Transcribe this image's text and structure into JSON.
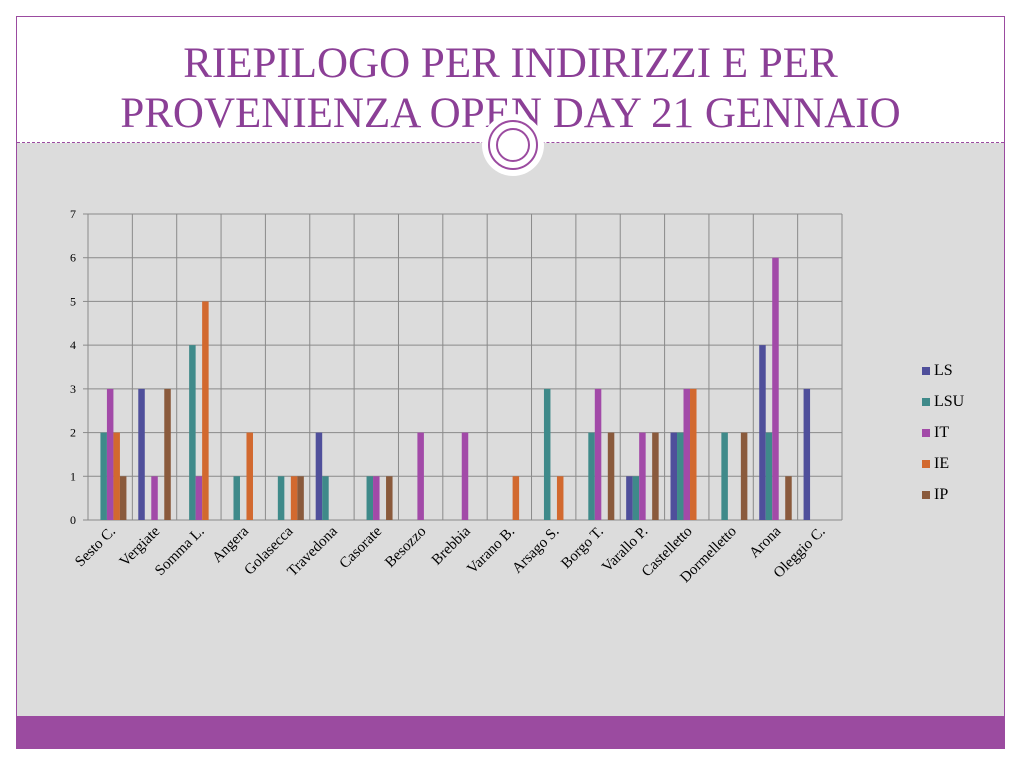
{
  "slide": {
    "title_line1": "RIEPILOGO PER INDIRIZZI E PER",
    "title_line2": "PROVENIENZA OPEN DAY  21 GENNAIO",
    "accent_color": "#9b4ba0"
  },
  "chart_data": {
    "type": "bar",
    "title": "",
    "xlabel": "",
    "ylabel": "",
    "ylim": [
      0,
      7
    ],
    "yticks": [
      0,
      1,
      2,
      3,
      4,
      5,
      6,
      7
    ],
    "grid": true,
    "legend_position": "right",
    "categories": [
      "Sesto C.",
      "Vergiate",
      "Somma L.",
      "Angera",
      "Golasecca",
      "Travedona",
      "Casorate",
      "Besozzo",
      "Brebbia",
      "Varano B.",
      "Arsago S.",
      "Borgo T.",
      "Varallo P.",
      "Castelletto",
      "Dormelletto",
      "Arona",
      "Oleggio C."
    ],
    "series": [
      {
        "name": "LS",
        "color": "#4f4f9b",
        "values": [
          0,
          3,
          0,
          0,
          0,
          2,
          0,
          0,
          0,
          0,
          0,
          0,
          1,
          2,
          0,
          4,
          3
        ]
      },
      {
        "name": "LSU",
        "color": "#3f8a8a",
        "values": [
          2,
          0,
          4,
          1,
          1,
          1,
          1,
          0,
          0,
          0,
          3,
          2,
          1,
          2,
          2,
          2,
          0
        ]
      },
      {
        "name": "IT",
        "color": "#a24aa8",
        "values": [
          3,
          1,
          1,
          0,
          0,
          0,
          1,
          2,
          2,
          0,
          0,
          3,
          2,
          3,
          0,
          6,
          0
        ]
      },
      {
        "name": "IE",
        "color": "#d2692f",
        "values": [
          2,
          0,
          5,
          2,
          1,
          0,
          0,
          0,
          0,
          1,
          1,
          0,
          0,
          3,
          0,
          0,
          0
        ]
      },
      {
        "name": "IP",
        "color": "#8a5a3c",
        "values": [
          1,
          3,
          0,
          0,
          1,
          0,
          1,
          0,
          0,
          0,
          0,
          2,
          2,
          0,
          2,
          1,
          0
        ]
      }
    ]
  }
}
